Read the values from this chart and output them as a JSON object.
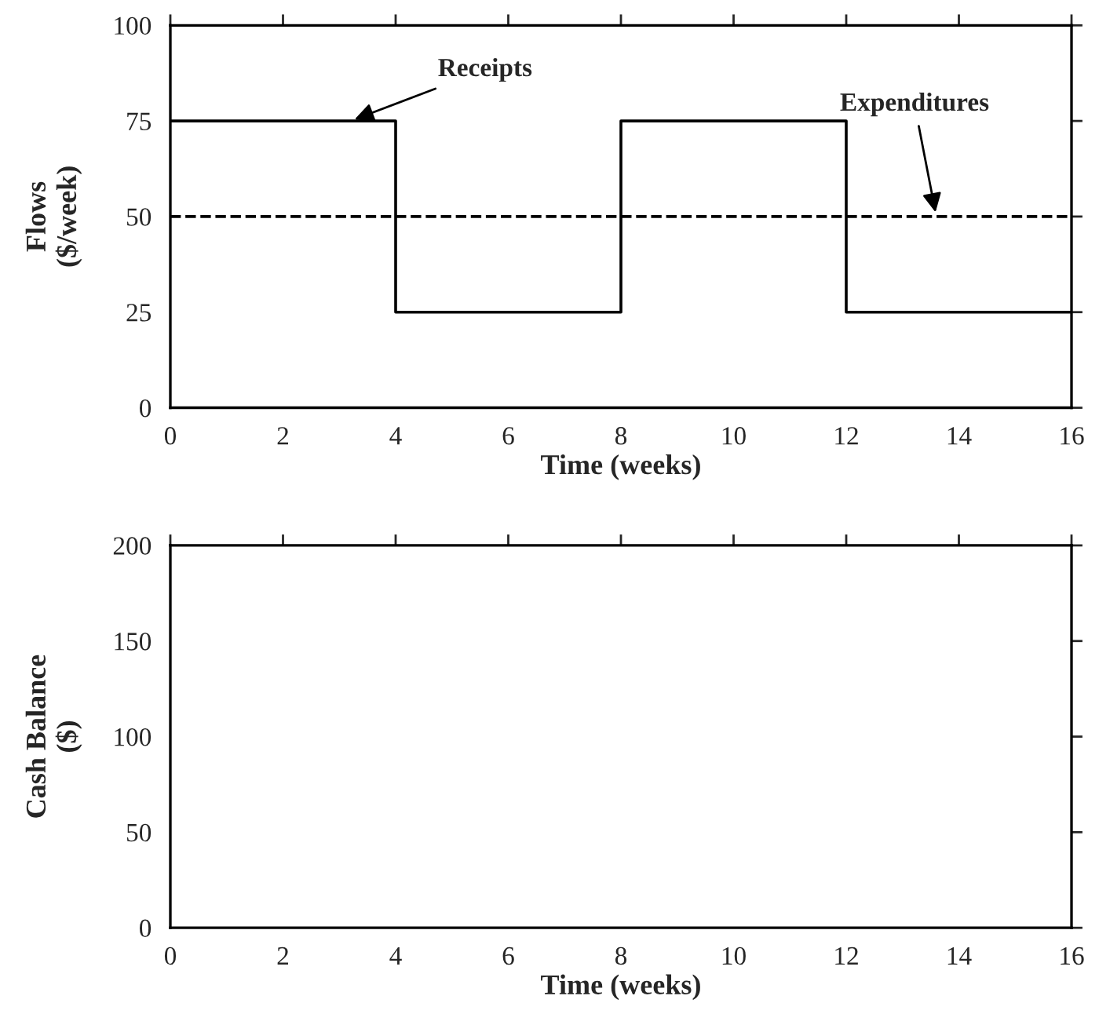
{
  "chart_data": [
    {
      "type": "step",
      "xlabel": "Time (weeks)",
      "ylabel": "Flows\n($/week)",
      "xlim": [
        0,
        16
      ],
      "ylim": [
        0,
        100
      ],
      "xticks": [
        0,
        2,
        4,
        6,
        8,
        10,
        12,
        14,
        16
      ],
      "yticks": [
        0,
        25,
        50,
        75,
        100
      ],
      "grid": false,
      "legend": false,
      "series": [
        {
          "color": "#000000",
          "line_style": "solid",
          "x": [
            0,
            4,
            8,
            12,
            16
          ],
          "values": [
            75,
            25,
            75,
            25,
            25
          ]
        },
        {
          "type": "line",
          "color": "#000000",
          "line_style": "dashed",
          "x": [
            0,
            16
          ],
          "values": [
            50,
            50
          ]
        }
      ],
      "annotations": [
        {
          "text": "Receipts",
          "x": 3.2,
          "y": 75
        },
        {
          "text": "Expenditures",
          "x": 13.6,
          "y": 50
        }
      ]
    },
    {
      "type": "line",
      "xlabel": "Time (weeks)",
      "ylabel": "Cash Balance\n($)",
      "xlim": [
        0,
        16
      ],
      "ylim": [
        0,
        200
      ],
      "xticks": [
        0,
        2,
        4,
        6,
        8,
        10,
        12,
        14,
        16
      ],
      "yticks": [
        0,
        50,
        100,
        150,
        200
      ],
      "grid": false,
      "legend": false
    }
  ]
}
